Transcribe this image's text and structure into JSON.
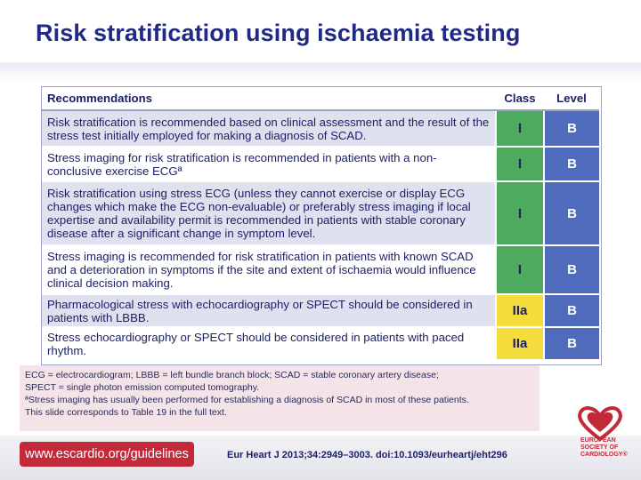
{
  "slide": {
    "title": "Risk stratification using ischaemia testing"
  },
  "table": {
    "headers": {
      "recommendations": "Recommendations",
      "class": "Class",
      "level": "Level"
    },
    "rows": [
      {
        "text": "Risk stratification is recommended based on clinical assessment and the result of the stress test initially employed for making a diagnosis of SCAD.",
        "class": "I",
        "level": "B"
      },
      {
        "text": "Stress imaging for risk stratification is recommended in patients with a non-conclusive exercise ECGª",
        "class": "I",
        "level": "B"
      },
      {
        "text": "Risk stratification using stress ECG (unless they cannot exercise or display ECG changes which make the ECG non-evaluable) or preferably stress imaging if local expertise and availability permit is recommended in patients with stable coronary disease after a significant change in symptom level.",
        "class": "I",
        "level": "B"
      },
      {
        "text": "Stress imaging is recommended for risk stratification in patients with known SCAD and a deterioration in symptoms if the site and extent of ischaemia would influence clinical decision making.",
        "class": "I",
        "level": "B"
      },
      {
        "text": "Pharmacological stress with echocardiography or SPECT should be considered in patients with LBBB.",
        "class": "IIa",
        "level": "B"
      },
      {
        "text": "Stress echocardiography or SPECT should be considered in patients with paced rhythm.",
        "class": "IIa",
        "level": "B"
      }
    ]
  },
  "footnote": {
    "line1": "ECG = electrocardiogram; LBBB = left bundle branch block; SCAD = stable coronary artery disease;",
    "line2": "SPECT = single photon emission computed tomography.",
    "line3": "ªStress imaging has usually been performed for establishing a diagnosis of SCAD in most of these patients.",
    "line4": "This slide corresponds to Table 19 in the full text."
  },
  "footer": {
    "url": "www.escardio.org/guidelines",
    "citation": "Eur Heart J 2013;34:2949–3003. doi:10.1093/eurheartj/eht296",
    "logo_text": "EUROPEAN SOCIETY OF CARDIOLOGY®"
  },
  "colors": {
    "title": "#1f2a86",
    "class_I": "#4eaa5c",
    "class_IIa": "#f3dc3c",
    "level": "#4f6bbb",
    "brand_red": "#c22a3a"
  }
}
